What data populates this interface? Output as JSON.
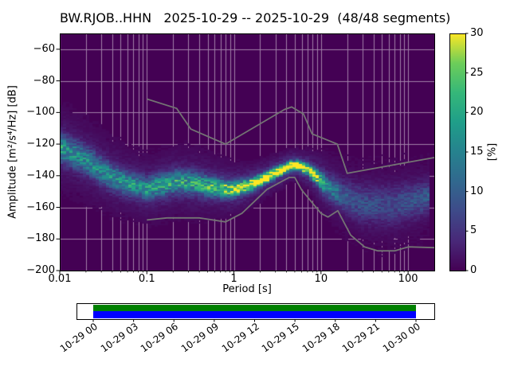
{
  "chart_data": {
    "type": "heatmap",
    "title": "BW.RJOB..HHN   2025-10-29 -- 2025-10-29  (48/48 segments)",
    "xlabel": "Period [s]",
    "ylabel": "Amplitude [m²/s⁴/Hz] [dB]",
    "x_scale": "log",
    "xlim": [
      0.01,
      200
    ],
    "ylim": [
      -200,
      -50
    ],
    "grid": true,
    "x_ticks": {
      "values": [
        0.01,
        0.1,
        1,
        10,
        100
      ],
      "labels": [
        "0.01",
        "0.1",
        "1",
        "10",
        "100"
      ]
    },
    "y_ticks": {
      "values": [
        -60,
        -80,
        -100,
        -120,
        -140,
        -160,
        -180,
        -200
      ],
      "labels": [
        "−60",
        "−80",
        "−100",
        "−120",
        "−140",
        "−160",
        "−180",
        "−200"
      ]
    },
    "colorbar": {
      "label": "[%]",
      "clim": [
        0,
        30
      ],
      "tick_values": [
        0,
        5,
        10,
        15,
        20,
        25,
        30
      ],
      "tick_labels": [
        "0",
        "5",
        "10",
        "15",
        "20",
        "25",
        "30"
      ]
    },
    "colormap": "viridis",
    "colormap_stops": [
      [
        0,
        "#440154"
      ],
      [
        0.125,
        "#482878"
      ],
      [
        0.25,
        "#3e4a89"
      ],
      [
        0.375,
        "#31688e"
      ],
      [
        0.5,
        "#26828e"
      ],
      [
        0.625,
        "#1f9e89"
      ],
      [
        0.75,
        "#35b779"
      ],
      [
        0.875,
        "#6dcd59"
      ],
      [
        1,
        "#fde725"
      ]
    ],
    "grid_note": "probability density of PSD values, percent per 1 dB bin",
    "ppsd_distribution": {
      "period_s": [
        0.01,
        0.02,
        0.04,
        0.07,
        0.1,
        0.15,
        0.22,
        0.35,
        0.6,
        1.0,
        1.5,
        2.2,
        3.2,
        4.5,
        5.5,
        7,
        9,
        12,
        18,
        30,
        60,
        120,
        178
      ],
      "mode_db": [
        -122,
        -130,
        -141,
        -146,
        -148,
        -146,
        -143.5,
        -144.5,
        -147.5,
        -148.5,
        -146,
        -142,
        -137.5,
        -133.5,
        -133.5,
        -136,
        -141,
        -147,
        -153,
        -158,
        -159,
        -156,
        -153
      ],
      "spread_db": [
        5.5,
        5.5,
        5,
        4.5,
        4.5,
        4.5,
        4.5,
        4.5,
        4,
        3,
        2.5,
        2.2,
        2,
        1.8,
        1.8,
        2.2,
        3,
        4.5,
        6,
        7.5,
        8,
        7,
        6
      ],
      "peak_percent": [
        15,
        13,
        14,
        15,
        15,
        16,
        16,
        16,
        18,
        24,
        28,
        30,
        31,
        32,
        32,
        29,
        22,
        13,
        8,
        6.5,
        6,
        7,
        8
      ]
    },
    "noise_models": {
      "color": "#737373",
      "high": [
        [
          0.1,
          -91.5
        ],
        [
          0.22,
          -97.4
        ],
        [
          0.32,
          -110.5
        ],
        [
          0.8,
          -120.0
        ],
        [
          3.8,
          -98.1
        ],
        [
          4.6,
          -96.5
        ],
        [
          6.3,
          -101.0
        ],
        [
          7.9,
          -113.5
        ],
        [
          15.4,
          -120.0
        ],
        [
          20.0,
          -138.5
        ],
        [
          50.0,
          -134.5
        ],
        [
          100.0,
          -131.5
        ],
        [
          200.0,
          -128.5
        ]
      ],
      "low": [
        [
          0.1,
          -168.0
        ],
        [
          0.17,
          -166.7
        ],
        [
          0.4,
          -166.7
        ],
        [
          0.8,
          -169.2
        ],
        [
          1.24,
          -163.7
        ],
        [
          2.4,
          -148.6
        ],
        [
          4.3,
          -141.1
        ],
        [
          5.0,
          -141.1
        ],
        [
          6.0,
          -149.0
        ],
        [
          10.0,
          -163.8
        ],
        [
          12.0,
          -166.1
        ],
        [
          15.6,
          -162.1
        ],
        [
          21.9,
          -177.5
        ],
        [
          31.6,
          -185.0
        ],
        [
          45.0,
          -187.5
        ],
        [
          70.0,
          -187.5
        ],
        [
          101.0,
          -185.0
        ],
        [
          200.0,
          -185.5
        ]
      ]
    },
    "timeline": {
      "tick_labels": [
        "10-29 00",
        "10-29 03",
        "10-29 06",
        "10-29 09",
        "10-29 12",
        "10-29 15",
        "10-29 18",
        "10-29 21",
        "10-30 00"
      ],
      "psd_coverage_color": "#008000",
      "data_coverage_color": "#0000ff"
    }
  }
}
